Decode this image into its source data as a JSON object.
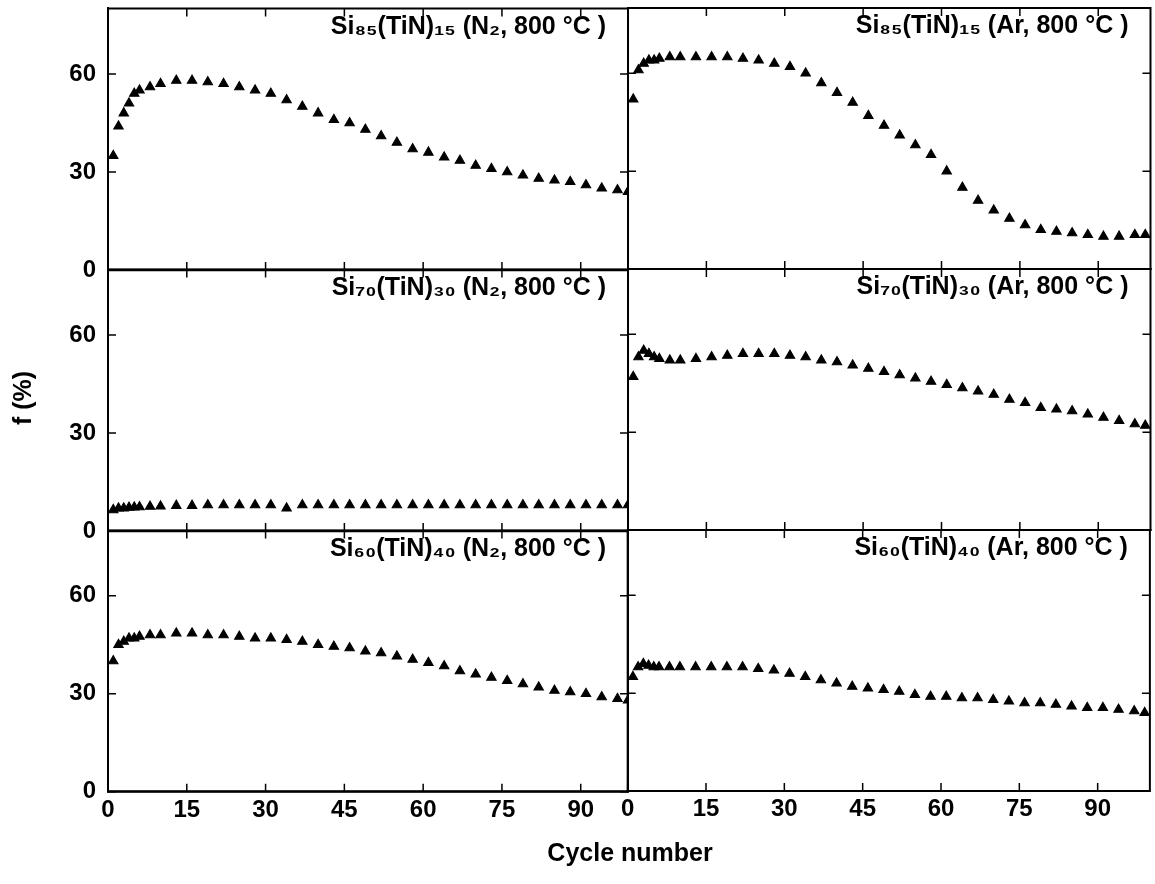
{
  "chart_data": [
    {
      "type": "scatter",
      "title": "Si₈₅(TiN)₁₅ (N₂, 800 °C )",
      "marker": "triangle",
      "tick_labels": "y",
      "xlim": [
        0,
        99
      ],
      "xticks": [
        0,
        15,
        30,
        45,
        60,
        75,
        90
      ],
      "ylim": [
        0,
        80
      ],
      "yticks": [
        0,
        30,
        60
      ],
      "x": [
        1,
        2,
        3,
        4,
        5,
        6,
        8,
        10,
        13,
        16,
        19,
        22,
        25,
        28,
        31,
        34,
        37,
        40,
        43,
        46,
        49,
        52,
        55,
        58,
        61,
        64,
        67,
        70,
        73,
        76,
        79,
        82,
        85,
        88,
        91,
        94,
        97,
        99
      ],
      "series": [
        {
          "color": "#000000",
          "values": [
            35,
            44,
            48,
            51,
            54,
            55,
            56,
            57,
            58,
            58,
            57.5,
            57,
            56,
            55,
            54,
            52,
            50,
            48,
            46,
            45,
            43,
            41,
            39,
            37,
            36,
            34.5,
            33.5,
            32,
            31,
            30,
            29,
            28,
            27.5,
            27,
            26,
            25,
            24.5,
            24
          ]
        }
      ]
    },
    {
      "type": "scatter",
      "title": "Si₈₅(TiN)₁₅ (Ar, 800 °C )",
      "marker": "triangle",
      "tick_labels": false,
      "xlim": [
        0,
        100
      ],
      "xticks": [
        0,
        15,
        30,
        45,
        60,
        75,
        90
      ],
      "ylim": [
        0,
        80
      ],
      "yticks": [
        0,
        30,
        60
      ],
      "x": [
        1,
        2,
        3,
        4,
        5,
        6,
        8,
        10,
        13,
        16,
        19,
        22,
        25,
        28,
        31,
        34,
        37,
        40,
        43,
        46,
        49,
        52,
        55,
        58,
        61,
        64,
        67,
        70,
        73,
        76,
        79,
        82,
        85,
        88,
        91,
        94,
        97,
        99
      ],
      "series": [
        {
          "color": "#000000",
          "values": [
            52,
            61,
            63,
            64,
            64,
            64.5,
            65,
            65,
            65,
            65,
            65,
            64.5,
            64,
            63,
            62,
            60,
            57,
            54,
            51,
            47,
            44,
            41,
            38,
            35,
            30,
            25,
            21,
            18,
            15.5,
            13.5,
            12,
            11.5,
            11,
            10.5,
            10,
            10,
            10.5,
            10.5
          ]
        }
      ]
    },
    {
      "type": "scatter",
      "title": "Si₇₀(TiN)₃₀ (N₂, 800 °C )",
      "ylabel": "f (%)",
      "marker": "triangle",
      "tick_labels": "y",
      "xlim": [
        0,
        99
      ],
      "xticks": [
        0,
        15,
        30,
        45,
        60,
        75,
        90
      ],
      "ylim": [
        0,
        80
      ],
      "yticks": [
        0,
        30,
        60
      ],
      "x": [
        1,
        2,
        3,
        4,
        5,
        6,
        8,
        10,
        13,
        16,
        19,
        22,
        25,
        28,
        31,
        34,
        37,
        40,
        43,
        46,
        49,
        52,
        55,
        58,
        61,
        64,
        67,
        70,
        73,
        76,
        79,
        82,
        85,
        88,
        91,
        94,
        97,
        99
      ],
      "series": [
        {
          "color": "#000000",
          "values": [
            6.5,
            7,
            7,
            7.2,
            7.3,
            7.4,
            7.5,
            7.6,
            7.8,
            7.8,
            8,
            8,
            8,
            8,
            8,
            7,
            8,
            8,
            8,
            8,
            8,
            8,
            8,
            8,
            8,
            8,
            8,
            8,
            8,
            8,
            8,
            8,
            8,
            8,
            8,
            8,
            8,
            8
          ]
        }
      ]
    },
    {
      "type": "scatter",
      "title": "Si₇₀(TiN)₃₀ (Ar, 800 °C )",
      "marker": "triangle",
      "tick_labels": false,
      "xlim": [
        0,
        100
      ],
      "xticks": [
        0,
        15,
        30,
        45,
        60,
        75,
        90
      ],
      "ylim": [
        0,
        80
      ],
      "yticks": [
        0,
        30,
        60
      ],
      "x": [
        1,
        2,
        3,
        4,
        5,
        6,
        8,
        10,
        13,
        16,
        19,
        22,
        25,
        28,
        31,
        34,
        37,
        40,
        43,
        46,
        49,
        52,
        55,
        58,
        61,
        64,
        67,
        70,
        73,
        76,
        79,
        82,
        85,
        88,
        91,
        94,
        97,
        99
      ],
      "series": [
        {
          "color": "#000000",
          "values": [
            47,
            53,
            55,
            54,
            53,
            52.5,
            52,
            52,
            52.5,
            53,
            53.5,
            54,
            54,
            54,
            53.5,
            53,
            52,
            51.5,
            50.5,
            49.5,
            48.5,
            47.5,
            46.5,
            45.5,
            44.5,
            43.5,
            42.5,
            41.5,
            40,
            39,
            37.5,
            37,
            36.5,
            35.5,
            34.5,
            33.5,
            32.5,
            32
          ]
        }
      ]
    },
    {
      "type": "scatter",
      "title": "Si₆₀(TiN)₄₀ (N₂, 800 °C )",
      "xlabel": "Cycle number",
      "marker": "triangle",
      "xlim": [
        0,
        99
      ],
      "xticks": [
        0,
        15,
        30,
        45,
        60,
        75,
        90
      ],
      "ylim": [
        0,
        80
      ],
      "yticks": [
        0,
        30,
        60
      ],
      "x": [
        1,
        2,
        3,
        4,
        5,
        6,
        8,
        10,
        13,
        16,
        19,
        22,
        25,
        28,
        31,
        34,
        37,
        40,
        43,
        46,
        49,
        52,
        55,
        58,
        61,
        64,
        67,
        70,
        73,
        76,
        79,
        82,
        85,
        88,
        91,
        94,
        97,
        99
      ],
      "series": [
        {
          "color": "#000000",
          "values": [
            40,
            45,
            46,
            47,
            47,
            47.5,
            48,
            48,
            48.5,
            48.5,
            48,
            48,
            47.5,
            47,
            47,
            46.5,
            46,
            45,
            44.5,
            44,
            43,
            42.5,
            41.5,
            40.5,
            39.5,
            38.5,
            37,
            36,
            35,
            34,
            33,
            32,
            31,
            30.5,
            30,
            29,
            28.5,
            28
          ]
        }
      ]
    },
    {
      "type": "scatter",
      "title": "Si₆₀(TiN)₄₀ (Ar, 800 °C )",
      "marker": "triangle",
      "tick_labels": "x",
      "xlim": [
        0,
        100
      ],
      "xticks": [
        0,
        15,
        30,
        45,
        60,
        75,
        90
      ],
      "ylim": [
        0,
        80
      ],
      "yticks": [
        0,
        30,
        60
      ],
      "x": [
        1,
        2,
        3,
        4,
        5,
        6,
        8,
        10,
        13,
        16,
        19,
        22,
        25,
        28,
        31,
        34,
        37,
        40,
        43,
        46,
        49,
        52,
        55,
        58,
        61,
        64,
        67,
        70,
        73,
        76,
        79,
        82,
        85,
        88,
        91,
        94,
        97,
        99
      ],
      "series": [
        {
          "color": "#000000",
          "values": [
            35,
            38,
            39,
            38.5,
            38,
            38,
            38,
            38,
            38,
            38,
            38,
            38,
            37.5,
            37,
            36,
            35,
            34,
            33,
            32,
            31.5,
            31,
            30.5,
            29.5,
            29,
            29,
            28.5,
            28.5,
            28,
            27.5,
            27,
            27,
            26.5,
            26,
            25.5,
            25.5,
            25,
            24.5,
            24
          ]
        }
      ]
    }
  ]
}
